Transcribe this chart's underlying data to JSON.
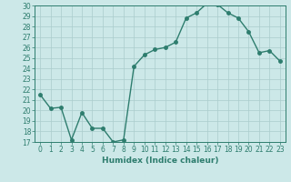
{
  "x": [
    0,
    1,
    2,
    3,
    4,
    5,
    6,
    7,
    8,
    9,
    10,
    11,
    12,
    13,
    14,
    15,
    16,
    17,
    18,
    19,
    20,
    21,
    22,
    23
  ],
  "y": [
    21.5,
    20.2,
    20.3,
    17.2,
    19.8,
    18.3,
    18.3,
    17.0,
    17.2,
    24.2,
    25.3,
    25.8,
    26.0,
    26.5,
    28.8,
    29.3,
    30.2,
    30.1,
    29.3,
    28.8,
    27.5,
    25.5,
    25.7,
    24.7
  ],
  "line_color": "#2e7d6e",
  "marker": "o",
  "markersize": 2.5,
  "linewidth": 1.0,
  "bg_color": "#cce8e8",
  "grid_color": "#aacccc",
  "xlabel": "Humidex (Indice chaleur)",
  "ylabel": "",
  "xlim": [
    -0.5,
    23.5
  ],
  "ylim": [
    17,
    30
  ],
  "yticks": [
    17,
    18,
    19,
    20,
    21,
    22,
    23,
    24,
    25,
    26,
    27,
    28,
    29,
    30
  ],
  "xticks": [
    0,
    1,
    2,
    3,
    4,
    5,
    6,
    7,
    8,
    9,
    10,
    11,
    12,
    13,
    14,
    15,
    16,
    17,
    18,
    19,
    20,
    21,
    22,
    23
  ],
  "tick_fontsize": 5.5,
  "xlabel_fontsize": 6.5
}
